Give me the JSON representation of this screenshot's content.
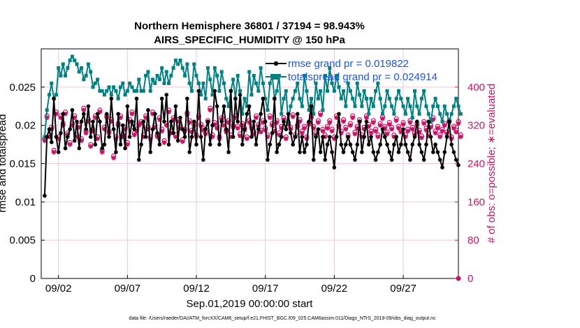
{
  "chart_data": {
    "type": "line",
    "title": "Northern Hemisphere 36801 / 37194 = 98.943%",
    "subtitle": "AIRS_SPECIFIC_HUMIDITY @ 150 hPa",
    "xlabel": "Sep.01,2019 00:00:00 start",
    "ylabel_left": "rmse and totalspread",
    "ylabel_right": "# of obs: o=possible; ∗=evaluated",
    "footer": "data file: /Users/raeder/DAI/ATM_forcXX/CAM6_setup/f.e21.FHIST_BGC.f09_025.CAM6assim.011/Diags_NTrS_2019-09/obs_diag_output.nc",
    "x_ticks": [
      2,
      7,
      12,
      17,
      22,
      27
    ],
    "x_tick_labels": [
      "09/02",
      "09/07",
      "09/12",
      "09/17",
      "09/22",
      "09/27"
    ],
    "xlim": [
      0.75,
      31.0
    ],
    "ylim_left": [
      0,
      0.03
    ],
    "y_ticks_left": [
      0,
      0.005,
      0.01,
      0.015,
      0.02,
      0.025
    ],
    "y_tick_labels_left": [
      "0",
      "0.005",
      "0.01",
      "0.015",
      "0.02",
      "0.025"
    ],
    "ylim_right": [
      0,
      480
    ],
    "y_ticks_right": [
      0,
      80,
      160,
      240,
      320,
      400
    ],
    "y_tick_labels_right": [
      "0",
      "80",
      "160",
      "240",
      "320",
      "400"
    ],
    "legend": [
      "rmse grand pr = 0.019822",
      "totalspread grand pr = 0.024914"
    ],
    "colors": {
      "rmse": "#000000",
      "spread": "#008080",
      "obs": "#cc1166",
      "legend_text": "#1a55e6",
      "grid": "#f0c8d8"
    },
    "rmse": [
      0.0108,
      0.0185,
      0.0195,
      0.0178,
      0.0235,
      0.0185,
      0.0165,
      0.019,
      0.0215,
      0.017,
      0.0185,
      0.0195,
      0.022,
      0.018,
      0.0205,
      0.017,
      0.0205,
      0.0215,
      0.0195,
      0.0225,
      0.0185,
      0.0205,
      0.0175,
      0.0215,
      0.0205,
      0.017,
      0.0175,
      0.0215,
      0.0185,
      0.0235,
      0.0195,
      0.0165,
      0.0215,
      0.0175,
      0.02,
      0.017,
      0.0225,
      0.0185,
      0.0205,
      0.0195,
      0.0235,
      0.0155,
      0.0175,
      0.0205,
      0.0185,
      0.022,
      0.0165,
      0.0195,
      0.0215,
      0.019,
      0.0175,
      0.0235,
      0.0205,
      0.024,
      0.0175,
      0.0205,
      0.019,
      0.0225,
      0.018,
      0.021,
      0.0195,
      0.0185,
      0.0235,
      0.0165,
      0.0185,
      0.0205,
      0.0175,
      0.0245,
      0.0185,
      0.0155,
      0.0195,
      0.0205,
      0.0175,
      0.02,
      0.0245,
      0.0225,
      0.0175,
      0.0205,
      0.0225,
      0.0195,
      0.0165,
      0.0245,
      0.0185,
      0.0235,
      0.0205,
      0.024,
      0.0175,
      0.0195,
      0.0215,
      0.0225,
      0.0185,
      0.0205,
      0.0175,
      0.0195,
      0.0215,
      0.0235,
      0.0205,
      0.0155,
      0.0175,
      0.019,
      0.0235,
      0.0165,
      0.0175,
      0.0185,
      0.0205,
      0.0195,
      0.0215,
      0.019,
      0.0175,
      0.0185,
      0.0215,
      0.0165,
      0.0185,
      0.0165,
      0.0175,
      0.0205,
      0.0225,
      0.0155,
      0.0185,
      0.0195,
      0.0165,
      0.0185,
      0.0155,
      0.0175,
      0.0185,
      0.0165,
      0.0145,
      0.0185,
      0.0215,
      0.0175,
      0.0165,
      0.0175,
      0.0185,
      0.0175,
      0.0165,
      0.0155,
      0.0175,
      0.0205,
      0.0165,
      0.0185,
      0.0205,
      0.0175,
      0.0185,
      0.0165,
      0.0155,
      0.0165,
      0.0175,
      0.0195,
      0.0185,
      0.0175,
      0.0165,
      0.0155,
      0.0175,
      0.0185,
      0.0165,
      0.0175,
      0.0195,
      0.0175,
      0.0165,
      0.0155,
      0.0175,
      0.0185,
      0.0205,
      0.0175,
      0.0165,
      0.0155,
      0.0175,
      0.0205,
      0.0185,
      0.0165,
      0.0175,
      0.0165,
      0.0155,
      0.0145,
      0.0165,
      0.0185,
      0.0205,
      0.0175,
      0.0165,
      0.0155,
      0.0148
    ],
    "spread": [
      0.0185,
      0.022,
      0.024,
      0.0255,
      0.0235,
      0.024,
      0.0275,
      0.0265,
      0.028,
      0.0265,
      0.0275,
      0.0285,
      0.029,
      0.0285,
      0.028,
      0.027,
      0.0275,
      0.026,
      0.0265,
      0.028,
      0.027,
      0.025,
      0.0255,
      0.026,
      0.0245,
      0.0245,
      0.024,
      0.0245,
      0.025,
      0.024,
      0.025,
      0.0245,
      0.0235,
      0.025,
      0.0255,
      0.024,
      0.0245,
      0.0255,
      0.025,
      0.0245,
      0.0245,
      0.026,
      0.0245,
      0.0245,
      0.0265,
      0.027,
      0.0245,
      0.026,
      0.0255,
      0.0265,
      0.026,
      0.0275,
      0.0255,
      0.027,
      0.0255,
      0.0265,
      0.0275,
      0.0285,
      0.028,
      0.0285,
      0.0275,
      0.0265,
      0.028,
      0.0255,
      0.0245,
      0.028,
      0.0265,
      0.0255,
      0.024,
      0.0255,
      0.0235,
      0.0275,
      0.026,
      0.024,
      0.0275,
      0.0265,
      0.0245,
      0.027,
      0.0255,
      0.0235,
      0.0225,
      0.0245,
      0.026,
      0.0235,
      0.0265,
      0.0245,
      0.0215,
      0.0235,
      0.0225,
      0.027,
      0.024,
      0.0265,
      0.0255,
      0.0245,
      0.0275,
      0.0255,
      0.0235,
      0.022,
      0.0255,
      0.0265,
      0.0235,
      0.0245,
      0.0265,
      0.0215,
      0.0235,
      0.0245,
      0.0205,
      0.0225,
      0.0235,
      0.0245,
      0.0255,
      0.0235,
      0.0225,
      0.0265,
      0.0245,
      0.022,
      0.0235,
      0.0215,
      0.0255,
      0.0235,
      0.0245,
      0.022,
      0.0265,
      0.0245,
      0.0275,
      0.0255,
      0.0245,
      0.0265,
      0.025,
      0.0235,
      0.0245,
      0.0225,
      0.0255,
      0.0245,
      0.0235,
      0.0225,
      0.0255,
      0.024,
      0.0225,
      0.0245,
      0.0235,
      0.0215,
      0.0235,
      0.0225,
      0.0245,
      0.0255,
      0.0235,
      0.0215,
      0.0225,
      0.0245,
      0.0235,
      0.0225,
      0.0215,
      0.0235,
      0.0245,
      0.0235,
      0.0225,
      0.0215,
      0.0235,
      0.0225,
      0.021,
      0.0245,
      0.0225,
      0.0215,
      0.0235,
      0.0245,
      0.0225,
      0.0215,
      0.0205,
      0.0225,
      0.0235,
      0.0225,
      0.0215,
      0.0205,
      0.0225,
      0.0215,
      0.0205,
      0.0215,
      0.0225,
      0.0235,
      0.0225,
      0.0215
    ],
    "obs_possible": [
      292,
      340,
      300,
      316,
      268,
      348,
      296,
      340,
      324,
      348,
      304,
      284,
      324,
      340,
      300,
      320,
      292,
      356,
      308,
      332,
      280,
      312,
      340,
      296,
      352,
      268,
      316,
      340,
      308,
      332,
      256,
      296,
      324,
      340,
      300,
      316,
      284,
      332,
      348,
      304,
      312,
      324,
      328,
      300,
      340,
      316,
      296,
      348,
      320,
      300,
      336,
      312,
      288,
      324,
      352,
      308,
      336,
      300,
      332,
      318,
      290,
      312,
      346,
      330,
      310,
      324,
      300,
      340,
      322,
      314,
      306,
      330,
      356,
      300,
      326,
      318,
      296,
      336,
      324,
      310,
      330,
      300,
      320,
      340,
      318,
      302,
      324,
      314,
      296,
      330,
      318,
      306,
      340,
      322,
      310,
      330,
      314,
      300,
      340,
      324,
      312,
      330,
      304,
      318,
      336,
      296,
      326,
      316,
      342,
      300,
      320,
      332,
      308,
      318,
      296,
      326,
      340,
      318,
      304,
      330,
      346,
      312,
      300,
      318,
      330,
      312,
      296,
      340,
      320,
      308,
      332,
      316,
      300,
      324,
      340,
      306,
      318,
      332,
      300,
      316,
      340,
      322,
      308,
      330,
      312,
      300,
      324,
      338,
      318,
      306,
      326,
      316,
      300,
      334,
      318,
      310,
      326,
      300,
      312,
      330,
      316,
      304,
      324,
      310,
      298,
      328,
      314,
      302,
      320,
      336,
      308,
      318,
      300,
      312,
      324,
      306,
      330,
      296,
      318,
      310,
      328,
      300
    ],
    "obs_evaluated": [
      288,
      336,
      296,
      312,
      264,
      344,
      292,
      336,
      320,
      344,
      300,
      280,
      320,
      336,
      296,
      316,
      288,
      352,
      304,
      328,
      276,
      308,
      336,
      292,
      348,
      264,
      312,
      336,
      304,
      328,
      252,
      292,
      320,
      336,
      296,
      312,
      280,
      328,
      344,
      300,
      308,
      320,
      324,
      296,
      336,
      312,
      292,
      344,
      316,
      296,
      332,
      308,
      284,
      320,
      348,
      304,
      332,
      296,
      328,
      314,
      286,
      308,
      342,
      326,
      306,
      320,
      296,
      336,
      318,
      310,
      302,
      326,
      352,
      296,
      322,
      314,
      292,
      332,
      320,
      306,
      326,
      296,
      316,
      336,
      314,
      298,
      320,
      310,
      292,
      326,
      314,
      302,
      336,
      318,
      306,
      326,
      310,
      296,
      336,
      320,
      308,
      326,
      300,
      314,
      332,
      292,
      322,
      312,
      338,
      296,
      316,
      328,
      304,
      314,
      292,
      322,
      336,
      314,
      300,
      326,
      342,
      308,
      296,
      314,
      326,
      308,
      292,
      336,
      316,
      304,
      328,
      312,
      296,
      320,
      336,
      302,
      314,
      328,
      296,
      312,
      336,
      318,
      304,
      326,
      308,
      296,
      320,
      334,
      314,
      302,
      322,
      312,
      296,
      330,
      314,
      306,
      322,
      296,
      308,
      326,
      312,
      300,
      320,
      306,
      294,
      324,
      310,
      298,
      316,
      332,
      304,
      314,
      296,
      308,
      320,
      302,
      326,
      292,
      314,
      306,
      324,
      296
    ]
  }
}
